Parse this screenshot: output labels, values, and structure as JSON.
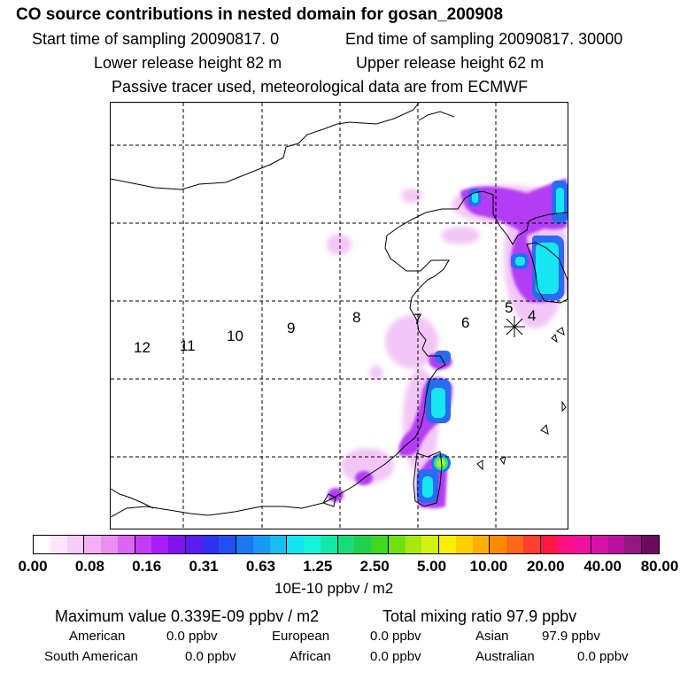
{
  "title": "CO  source contributions in nested domain for gosan_200908",
  "sampling": {
    "start": "Start time of sampling 20090817.     0",
    "end": "End time of sampling 20090817. 30000"
  },
  "release": {
    "lower": "Lower release height   82 m",
    "upper": "Upper release height   62 m"
  },
  "tracer_note": "Passive tracer used, meteorological data are from ECMWF",
  "map": {
    "receptor_marker": "star-icon",
    "labels": [
      "12",
      "11",
      "10",
      "9",
      "8",
      "7",
      "6",
      "5",
      "4"
    ]
  },
  "colorbar": {
    "ticks": [
      "0.00",
      "0.08",
      "0.16",
      "0.31",
      "0.63",
      "1.25",
      "2.50",
      "5.00",
      "10.00",
      "20.00",
      "40.00",
      "80.00"
    ],
    "unit": "10E-10 ppbv / m2",
    "colors": [
      "#ffffff",
      "#fde6fd",
      "#f9ccf9",
      "#f3b0f3",
      "#e98fef",
      "#dc66f2",
      "#c43df5",
      "#a51ef7",
      "#7f14ee",
      "#5a1cf0",
      "#3030f0",
      "#2050f0",
      "#1a78f0",
      "#189af2",
      "#16bef2",
      "#14e4f0",
      "#14f4d8",
      "#14e8a8",
      "#18dc78",
      "#20d050",
      "#40d820",
      "#70e010",
      "#a8e810",
      "#d4f010",
      "#f8f000",
      "#ffd000",
      "#ffb000",
      "#ff8c00",
      "#ff6818",
      "#ff4030",
      "#ff1840",
      "#ff1080",
      "#f010a0",
      "#d810a8",
      "#b810a0",
      "#901880",
      "#700a60"
    ]
  },
  "summary": {
    "max": "Maximum value  0.339E-09 ppbv / m2",
    "total": "Total mixing ratio       97.9 ppbv",
    "regions": [
      {
        "name": "American",
        "value": "0.0 ppbv"
      },
      {
        "name": "European",
        "value": "0.0 ppbv"
      },
      {
        "name": "Asian",
        "value": "97.9 ppbv"
      },
      {
        "name": "South American",
        "value": "0.0 ppbv"
      },
      {
        "name": "African",
        "value": "0.0 ppbv"
      },
      {
        "name": "Australian",
        "value": "0.0 ppbv"
      }
    ]
  }
}
